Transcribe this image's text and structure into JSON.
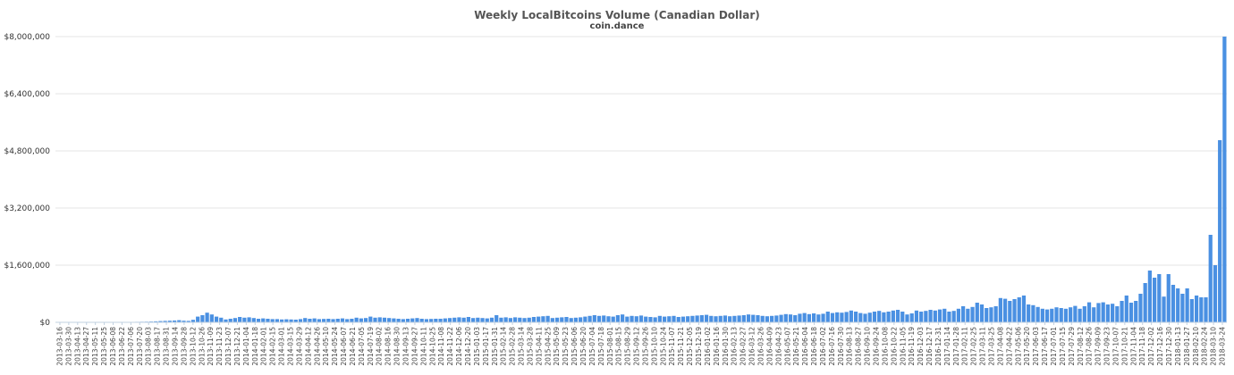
{
  "chart_data": {
    "type": "bar",
    "title": "Weekly LocalBitcoins Volume (Canadian Dollar)",
    "subtitle": "coin.dance",
    "xlabel": "",
    "ylabel": "",
    "ylim": [
      0,
      8000000
    ],
    "yticks": [
      0,
      1600000,
      3200000,
      4800000,
      6400000,
      8000000
    ],
    "ytick_labels": [
      "$0",
      "$1,600,000",
      "$3,200,000",
      "$4,800,000",
      "$6,400,000",
      "$8,000,000"
    ],
    "grid": true,
    "legend": "none",
    "color": "#4a90e2",
    "x_tick_labels": [
      "2013-03-16",
      "2013-03-30",
      "2013-04-13",
      "2013-04-27",
      "2013-05-11",
      "2013-05-25",
      "2013-06-08",
      "2013-06-22",
      "2013-07-06",
      "2013-07-20",
      "2013-08-03",
      "2013-08-17",
      "2013-08-31",
      "2013-09-14",
      "2013-09-28",
      "2013-10-12",
      "2013-10-26",
      "2013-11-09",
      "2013-11-23",
      "2013-12-07",
      "2013-12-21",
      "2014-01-04",
      "2014-01-18",
      "2014-02-01",
      "2014-02-15",
      "2014-03-01",
      "2014-03-15",
      "2014-03-29",
      "2014-04-12",
      "2014-04-26",
      "2014-05-10",
      "2014-05-24",
      "2014-06-07",
      "2014-06-21",
      "2014-07-05",
      "2014-07-19",
      "2014-08-02",
      "2014-08-16",
      "2014-08-30",
      "2014-09-13",
      "2014-09-27",
      "2014-10-11",
      "2014-10-25",
      "2014-11-08",
      "2014-11-22",
      "2014-12-06",
      "2014-12-20",
      "2015-01-03",
      "2015-01-17",
      "2015-01-31",
      "2015-02-14",
      "2015-02-28",
      "2015-03-14",
      "2015-03-28",
      "2015-04-11",
      "2015-04-25",
      "2015-05-09",
      "2015-05-23",
      "2015-06-06",
      "2015-06-20",
      "2015-07-04",
      "2015-07-18",
      "2015-08-01",
      "2015-08-15",
      "2015-08-29",
      "2015-09-12",
      "2015-09-26",
      "2015-10-10",
      "2015-10-24",
      "2015-11-07",
      "2015-11-21",
      "2015-12-05",
      "2015-12-19",
      "2016-01-02",
      "2016-01-16",
      "2016-01-30",
      "2016-02-13",
      "2016-02-27",
      "2016-03-12",
      "2016-03-26",
      "2016-04-09",
      "2016-04-23",
      "2016-05-07",
      "2016-05-21",
      "2016-06-04",
      "2016-06-18",
      "2016-07-02",
      "2016-07-16",
      "2016-07-30",
      "2016-08-13",
      "2016-08-27",
      "2016-09-10",
      "2016-09-24",
      "2016-10-08",
      "2016-10-22",
      "2016-11-05",
      "2016-11-19",
      "2016-12-03",
      "2016-12-17",
      "2016-12-31",
      "2017-01-14",
      "2017-01-28",
      "2017-02-11",
      "2017-02-25",
      "2017-03-11",
      "2017-03-25",
      "2017-04-08",
      "2017-04-22",
      "2017-05-06",
      "2017-05-20",
      "2017-06-03",
      "2017-06-17",
      "2017-07-01",
      "2017-07-15",
      "2017-07-29",
      "2017-08-12",
      "2017-08-26",
      "2017-09-09",
      "2017-09-23",
      "2017-10-07",
      "2017-10-21",
      "2017-11-04",
      "2017-11-18",
      "2017-12-02",
      "2017-12-16",
      "2017-12-30",
      "2018-01-13",
      "2018-01-27",
      "2018-02-10",
      "2018-02-24",
      "2018-03-10",
      "2018-03-24"
    ],
    "values": [
      5000,
      8000,
      6000,
      7000,
      5000,
      6000,
      4000,
      5000,
      4000,
      3000,
      3000,
      4000,
      5000,
      6000,
      8000,
      10000,
      12000,
      14000,
      16000,
      18000,
      22000,
      28000,
      35000,
      40000,
      45000,
      50000,
      60000,
      45000,
      40000,
      70000,
      160000,
      200000,
      270000,
      220000,
      160000,
      130000,
      80000,
      100000,
      120000,
      150000,
      130000,
      140000,
      120000,
      100000,
      110000,
      100000,
      90000,
      90000,
      80000,
      85000,
      80000,
      75000,
      90000,
      120000,
      100000,
      110000,
      90000,
      95000,
      100000,
      90000,
      100000,
      110000,
      90000,
      100000,
      130000,
      110000,
      120000,
      160000,
      130000,
      140000,
      130000,
      120000,
      110000,
      100000,
      90000,
      100000,
      110000,
      120000,
      100000,
      90000,
      95000,
      100000,
      100000,
      110000,
      120000,
      130000,
      140000,
      130000,
      150000,
      120000,
      130000,
      120000,
      110000,
      130000,
      200000,
      130000,
      140000,
      120000,
      140000,
      130000,
      120000,
      130000,
      150000,
      160000,
      170000,
      180000,
      120000,
      130000,
      140000,
      150000,
      120000,
      130000,
      140000,
      160000,
      180000,
      200000,
      180000,
      190000,
      170000,
      160000,
      200000,
      220000,
      160000,
      180000,
      170000,
      190000,
      160000,
      150000,
      140000,
      180000,
      160000,
      170000,
      180000,
      150000,
      160000,
      170000,
      180000,
      190000,
      200000,
      210000,
      180000,
      170000,
      180000,
      190000,
      170000,
      180000,
      190000,
      200000,
      220000,
      210000,
      200000,
      180000,
      170000,
      180000,
      190000,
      210000,
      230000,
      220000,
      200000,
      240000,
      260000,
      230000,
      250000,
      220000,
      240000,
      300000,
      260000,
      280000,
      270000,
      290000,
      330000,
      300000,
      260000,
      240000,
      270000,
      300000,
      320000,
      280000,
      300000,
      330000,
      350000,
      300000,
      220000,
      250000,
      330000,
      300000,
      320000,
      350000,
      330000,
      360000,
      380000,
      300000,
      320000,
      380000,
      450000,
      380000,
      430000,
      550000,
      500000,
      400000,
      420000,
      450000,
      680000,
      660000,
      600000,
      650000,
      700000,
      750000,
      500000,
      480000,
      430000,
      380000,
      360000,
      380000,
      420000,
      400000,
      380000,
      420000,
      460000,
      380000,
      450000,
      560000,
      420000,
      540000,
      560000,
      500000,
      520000,
      450000,
      600000,
      750000,
      550000,
      600000,
      800000,
      1100000,
      1450000,
      1250000,
      1350000,
      720000,
      1350000,
      1050000,
      950000,
      800000,
      950000,
      650000,
      750000,
      700000,
      700000,
      2450000,
      1600000,
      5100000,
      8000000
    ]
  }
}
